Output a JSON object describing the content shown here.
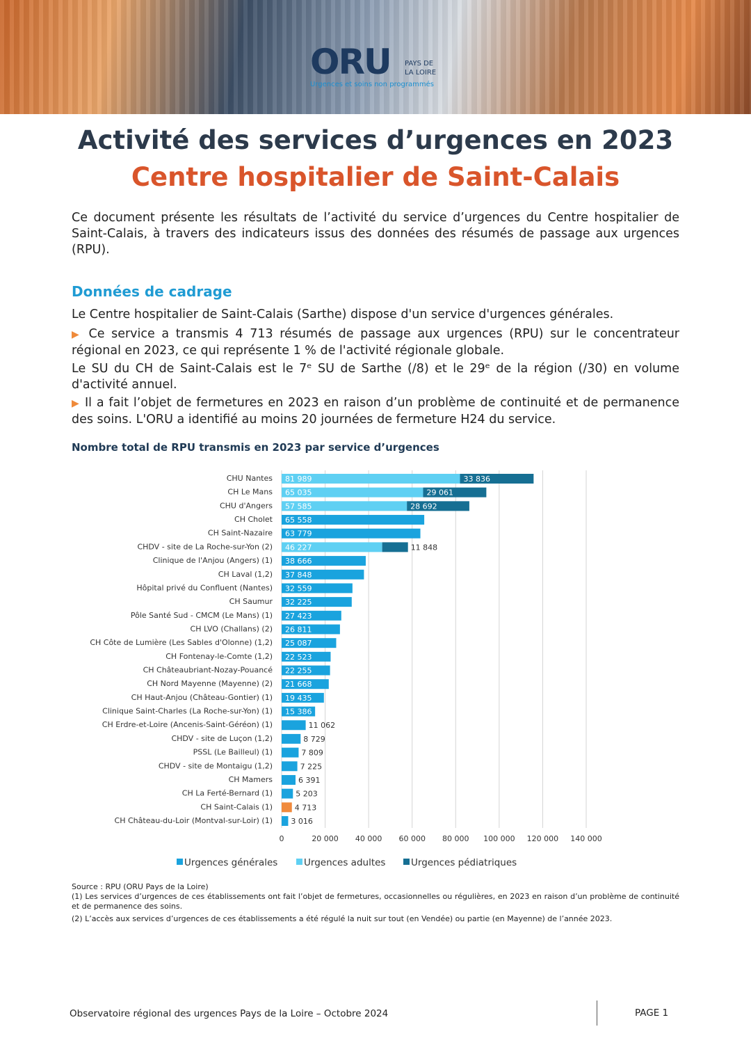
{
  "header": {
    "logo": "ORU",
    "region_line1": "PAYS DE",
    "region_line2": "LA LOIRE",
    "tagline": "Urgences et soins non programmés"
  },
  "title": "Activité des services d’urgences en 2023",
  "subtitle": "Centre hospitalier de Saint-Calais",
  "intro": "Ce document présente les résultats de l’activité du service d’urgences du Centre hospitalier de Saint-Calais, à travers des indicateurs issus des données des résumés de passage aux urgences (RPU).",
  "section": {
    "heading": "Données de cadrage",
    "paragraphs": [
      "Le Centre hospitalier de Saint-Calais (Sarthe) dispose d'un service d'urgences générales.",
      "Ce service a transmis 4 713 résumés de passage aux urgences (RPU) sur le concentrateur régional en 2023, ce qui représente 1 % de l'activité régionale globale.",
      "Le SU du CH de Saint-Calais est le 7ᵉ SU de Sarthe (/8) et le 29ᵉ de la région (/30) en volume d'activité annuel.",
      "Il a fait l’objet de fermetures en 2023 en raison d’un problème de continuité et de permanence des soins. L'ORU a identifié au moins 20 journées de fermeture H24 du service."
    ]
  },
  "chart_data": {
    "type": "stacked-hbar",
    "title": "Nombre total de RPU transmis en 2023 par service d’urgences",
    "categories": [
      "CHU Nantes",
      "CH Le Mans",
      "CHU d'Angers",
      "CH Cholet",
      "CH Saint-Nazaire",
      "CHDV - site de La Roche-sur-Yon (2)",
      "Clinique de l'Anjou (Angers) (1)",
      "CH Laval (1,2)",
      "Hôpital privé du Confluent (Nantes)",
      "CH Saumur",
      "Pôle Santé Sud - CMCM (Le Mans) (1)",
      "CH LVO (Challans) (2)",
      "CH Côte de Lumière (Les Sables d'Olonne) (1,2)",
      "CH Fontenay-le-Comte (1,2)",
      "CH Châteaubriant-Nozay-Pouancé",
      "CH Nord Mayenne (Mayenne) (2)",
      "CH Haut-Anjou (Château-Gontier) (1)",
      "Clinique Saint-Charles (La Roche-sur-Yon) (1)",
      "CH Erdre-et-Loire (Ancenis-Saint-Géréon) (1)",
      "CHDV - site de Luçon (1,2)",
      "PSSL (Le Bailleul) (1)",
      "CHDV - site de Montaigu (1,2)",
      "CH Mamers",
      "CH La Ferté-Bernard (1)",
      "CH Saint-Calais (1)",
      "CH Château-du-Loir (Montval-sur-Loir) (1)"
    ],
    "series": [
      {
        "name": "Urgences générales",
        "color": "#1aa3de",
        "values": [
          null,
          null,
          null,
          65558,
          63779,
          null,
          38666,
          37848,
          32559,
          32225,
          27423,
          26811,
          25087,
          22523,
          22255,
          21668,
          19435,
          15386,
          11062,
          8729,
          7809,
          7225,
          6391,
          5203,
          4713,
          3016
        ],
        "value_labels": [
          null,
          null,
          null,
          "65 558",
          "63 779",
          null,
          "38 666",
          "37 848",
          "32 559",
          "32 225",
          "27 423",
          "26 811",
          "25 087",
          "22 523",
          "22 255",
          "21 668",
          "19 435",
          "15 386",
          "11 062",
          "8 729",
          "7 809",
          "7 225",
          "6 391",
          "5 203",
          "4 713",
          "3 016"
        ]
      },
      {
        "name": "Urgences adultes",
        "color": "#5fd0f3",
        "values": [
          81989,
          65035,
          57585,
          null,
          null,
          46227,
          null,
          null,
          null,
          null,
          null,
          null,
          null,
          null,
          null,
          null,
          null,
          null,
          null,
          null,
          null,
          null,
          null,
          null,
          null,
          null
        ],
        "value_labels": [
          "81 989",
          "65 035",
          "57 585",
          null,
          null,
          "46 227",
          null,
          null,
          null,
          null,
          null,
          null,
          null,
          null,
          null,
          null,
          null,
          null,
          null,
          null,
          null,
          null,
          null,
          null,
          null,
          null
        ]
      },
      {
        "name": "Urgences pédiatriques",
        "color": "#166f93",
        "values": [
          33836,
          29061,
          28692,
          null,
          null,
          11848,
          null,
          null,
          null,
          null,
          null,
          null,
          null,
          null,
          null,
          null,
          null,
          null,
          null,
          null,
          null,
          null,
          null,
          null,
          null,
          null
        ],
        "value_labels": [
          "33 836",
          "29 061",
          "28 692",
          null,
          null,
          "11 848",
          null,
          null,
          null,
          null,
          null,
          null,
          null,
          null,
          null,
          null,
          null,
          null,
          null,
          null,
          null,
          null,
          null,
          null,
          null,
          null
        ]
      }
    ],
    "highlight": {
      "category": 24,
      "color": "#f08a3c"
    },
    "xlim": [
      0,
      140000
    ],
    "xticks": [
      0,
      {
        "value": 20000,
        "label": "20 000"
      },
      {
        "value": 40000,
        "label": "40 000"
      },
      {
        "value": 60000,
        "label": "60 000"
      },
      {
        "value": 80000,
        "label": "80 000"
      },
      {
        "value": 100000,
        "label": "100 000"
      },
      {
        "value": 120000,
        "label": "120 000"
      },
      {
        "value": 140000,
        "label": "140 000"
      }
    ],
    "grid": true,
    "legend": "bottom"
  },
  "notes": [
    "Source : RPU (ORU Pays de la Loire)",
    "(1) Les services d’urgences de ces établissements ont fait l’objet de fermetures, occasionnelles ou régulières, en 2023 en raison d’un problème de continuité et de permanence des soins.",
    "(2) L’accès aux services d’urgences de ces établissements a été régulé la nuit sur tout (en Vendée) ou partie (en Mayenne) de l’année 2023."
  ],
  "footer": {
    "left": "Observatoire régional des urgences Pays de la Loire – Octobre 2024",
    "right": "PAGE 1"
  }
}
